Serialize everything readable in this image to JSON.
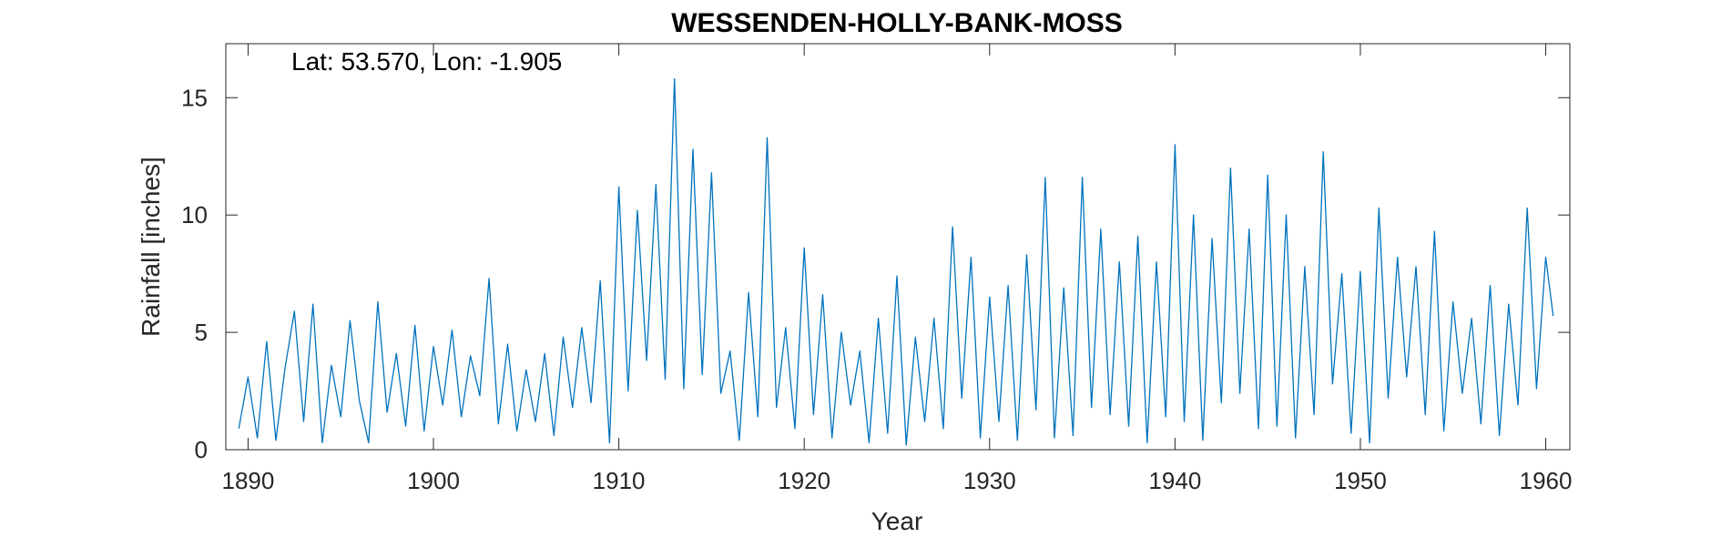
{
  "chart_data": {
    "type": "line",
    "title": "WESSENDEN-HOLLY-BANK-MOSS",
    "annotation": "Lat: 53.570, Lon: -1.905",
    "xlabel": "Year",
    "ylabel": "Rainfall [inches]",
    "xlim": [
      1888.8,
      1961.3
    ],
    "ylim": [
      0,
      17.3
    ],
    "xticks": [
      1890,
      1900,
      1910,
      1920,
      1930,
      1940,
      1950,
      1960
    ],
    "yticks": [
      0,
      5,
      10,
      15
    ],
    "grid": false,
    "line_color": "#0072BD",
    "series": [
      {
        "x": [
          1889.5,
          1890.0,
          1890.5,
          1891.0,
          1891.5,
          1892.0,
          1892.5,
          1893.0,
          1893.5,
          1894.0,
          1894.5,
          1895.0,
          1895.5,
          1896.0,
          1896.5,
          1897.0,
          1897.5,
          1898.0,
          1898.5,
          1899.0,
          1899.5,
          1900.0,
          1900.5,
          1901.0,
          1901.5,
          1902.0,
          1902.5,
          1903.0,
          1903.5,
          1904.0,
          1904.5,
          1905.0,
          1905.5,
          1906.0,
          1906.5,
          1907.0,
          1907.5,
          1908.0,
          1908.5,
          1909.0,
          1909.5,
          1910.0,
          1910.5,
          1911.0,
          1911.5,
          1912.0,
          1912.5,
          1913.0,
          1913.5,
          1914.0,
          1914.5,
          1915.0,
          1915.5,
          1916.0,
          1916.5,
          1917.0,
          1917.5,
          1918.0,
          1918.5,
          1919.0,
          1919.5,
          1920.0,
          1920.5,
          1921.0,
          1921.5,
          1922.0,
          1922.5,
          1923.0,
          1923.5,
          1924.0,
          1924.5,
          1925.0,
          1925.5,
          1926.0,
          1926.5,
          1927.0,
          1927.5,
          1928.0,
          1928.5,
          1929.0,
          1929.5,
          1930.0,
          1930.5,
          1931.0,
          1931.5,
          1932.0,
          1932.5,
          1933.0,
          1933.5,
          1934.0,
          1934.5,
          1935.0,
          1935.5,
          1936.0,
          1936.5,
          1937.0,
          1937.5,
          1938.0,
          1938.5,
          1939.0,
          1939.5,
          1940.0,
          1940.5,
          1941.0,
          1941.5,
          1942.0,
          1942.5,
          1943.0,
          1943.5,
          1944.0,
          1944.5,
          1945.0,
          1945.5,
          1946.0,
          1946.5,
          1947.0,
          1947.5,
          1948.0,
          1948.5,
          1949.0,
          1949.5,
          1950.0,
          1950.5,
          1951.0,
          1951.5,
          1952.0,
          1952.5,
          1953.0,
          1953.5,
          1954.0,
          1954.5,
          1955.0,
          1955.5,
          1956.0,
          1956.5,
          1957.0,
          1957.5,
          1958.0,
          1958.5,
          1959.0,
          1959.5,
          1960.0,
          1960.4
        ],
        "y": [
          0.9,
          3.1,
          0.5,
          4.6,
          0.4,
          3.5,
          5.9,
          1.2,
          6.2,
          0.3,
          3.6,
          1.4,
          5.5,
          2.1,
          0.3,
          6.3,
          1.6,
          4.1,
          1.0,
          5.3,
          0.8,
          4.4,
          1.9,
          5.1,
          1.4,
          4.0,
          2.3,
          7.3,
          1.1,
          4.5,
          0.8,
          3.4,
          1.2,
          4.1,
          0.6,
          4.8,
          1.8,
          5.2,
          2.0,
          7.2,
          0.3,
          11.2,
          2.5,
          10.2,
          3.8,
          11.3,
          3.0,
          15.8,
          2.6,
          12.8,
          3.2,
          11.8,
          2.4,
          4.2,
          0.4,
          6.7,
          1.4,
          13.3,
          1.8,
          5.2,
          0.9,
          8.6,
          1.5,
          6.6,
          0.5,
          5.0,
          1.9,
          4.2,
          0.3,
          5.6,
          0.7,
          7.4,
          0.2,
          4.8,
          1.2,
          5.6,
          0.9,
          9.5,
          2.2,
          8.2,
          0.5,
          6.5,
          1.2,
          7.0,
          0.4,
          8.3,
          1.7,
          11.6,
          0.5,
          6.9,
          0.6,
          11.6,
          1.8,
          9.4,
          1.5,
          8.0,
          1.0,
          9.1,
          0.3,
          8.0,
          1.4,
          13.0,
          1.2,
          10.0,
          0.4,
          9.0,
          2.0,
          12.0,
          2.4,
          9.4,
          0.9,
          11.7,
          1.0,
          10.0,
          0.5,
          7.8,
          1.5,
          12.7,
          2.8,
          7.5,
          0.7,
          7.6,
          0.3,
          10.3,
          2.2,
          8.2,
          3.1,
          7.8,
          1.5,
          9.3,
          0.8,
          6.3,
          2.4,
          5.6,
          1.1,
          7.0,
          0.6,
          6.2,
          1.9,
          10.3,
          2.6,
          8.2,
          5.7
        ]
      }
    ]
  }
}
